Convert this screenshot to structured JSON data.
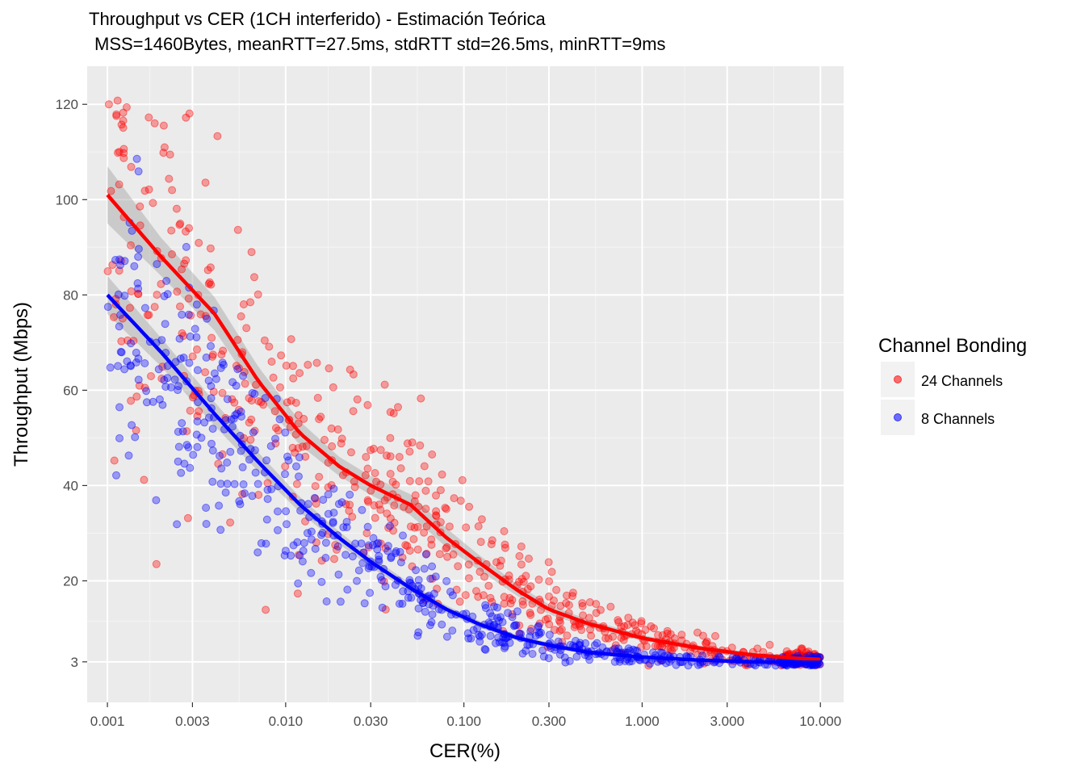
{
  "chart_data": {
    "type": "scatter",
    "title": "Throughput vs CER (1CH interferido) - Estimación Teórica",
    "subtitle": "MSS=1460Bytes, meanRTT=27.5ms, stdRTT std=26.5ms, minRTT=9ms",
    "xlabel": "CER(%)",
    "ylabel": "Throughput (Mbps)",
    "x_scale": "log10",
    "xlim": [
      0.00077,
      13.5
    ],
    "ylim": [
      -5.5,
      128
    ],
    "x_ticks": [
      0.001,
      0.003,
      0.01,
      0.03,
      0.1,
      0.3,
      1,
      3,
      10
    ],
    "x_tick_labels": [
      "0.001",
      "0.003",
      "0.010",
      "0.030",
      "0.100",
      "0.300",
      "1.000",
      "3.000",
      "10.000"
    ],
    "y_ticks": [
      3,
      20,
      40,
      60,
      80,
      100,
      120
    ],
    "y_tick_labels": [
      "3",
      "20",
      "40",
      "60",
      "80",
      "100",
      "120"
    ],
    "grid": true,
    "legend": {
      "title": "Channel Bonding",
      "position": "right",
      "entries": [
        "24 Channels",
        "8 Channels"
      ]
    },
    "series": [
      {
        "name": "24 Channels",
        "color": "#ff0000",
        "smooth_x": [
          0.001,
          0.002,
          0.004,
          0.007,
          0.012,
          0.02,
          0.03,
          0.05,
          0.08,
          0.12,
          0.2,
          0.3,
          0.5,
          1,
          2,
          4,
          7,
          10
        ],
        "smooth_y": [
          101,
          88,
          76,
          62,
          51,
          44,
          40,
          36,
          29,
          24,
          18,
          14,
          11,
          8,
          6,
          4.5,
          3.8,
          3.5
        ],
        "band_halfwidth": [
          6,
          4,
          3.5,
          3,
          2.5,
          2,
          2,
          2.2,
          2,
          1.6,
          1.2,
          1,
          0.8,
          0.6,
          0.5,
          0.5,
          0.5,
          0.6
        ]
      },
      {
        "name": "8 Channels",
        "color": "#0000ff",
        "smooth_x": [
          0.001,
          0.002,
          0.004,
          0.007,
          0.012,
          0.02,
          0.03,
          0.05,
          0.08,
          0.12,
          0.2,
          0.3,
          0.5,
          1,
          2,
          4,
          7,
          10
        ],
        "smooth_y": [
          80,
          68,
          55,
          45,
          36,
          29,
          24,
          18.5,
          14,
          11,
          8,
          6.5,
          5,
          4,
          3.4,
          3,
          2.9,
          2.9
        ],
        "band_halfwidth": [
          4,
          3,
          2.5,
          2,
          1.6,
          1.3,
          1.1,
          1,
          0.8,
          0.7,
          0.6,
          0.5,
          0.4,
          0.4,
          0.3,
          0.3,
          0.3,
          0.4
        ]
      }
    ],
    "point_count_per_series": 640
  }
}
